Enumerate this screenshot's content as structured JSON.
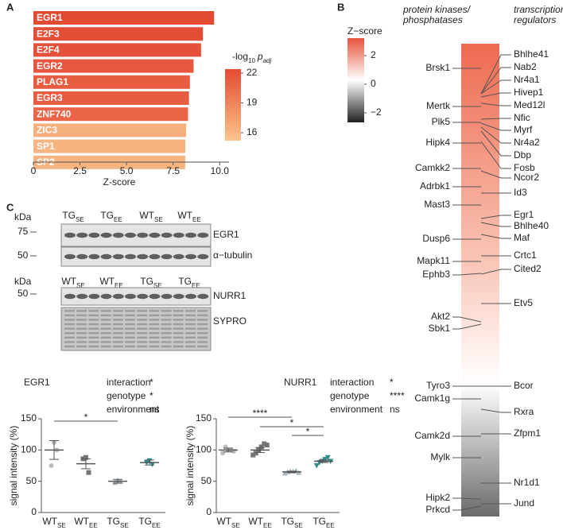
{
  "panels": [
    "A",
    "B",
    "C"
  ],
  "chart_data": [
    {
      "type": "bar",
      "orientation": "horizontal",
      "categories": [
        "EGR1",
        "E2F3",
        "E2F4",
        "EGR2",
        "PLAG1",
        "EGR3",
        "ZNF740",
        "ZIC3",
        "SP1",
        "SP2"
      ],
      "values": [
        9.7,
        9.1,
        9.0,
        8.6,
        8.4,
        8.35,
        8.3,
        8.2,
        8.15,
        8.15
      ],
      "colors": [
        "#e34a33",
        "#e44d35",
        "#e5503a",
        "#e7563e",
        "#e85c42",
        "#e85c42",
        "#ea6447",
        "#f6b07e",
        "#f6b480",
        "#f6b480"
      ],
      "xlabel": "Z-score",
      "xlim": [
        0,
        10.5
      ],
      "xticks": [
        0,
        2.5,
        {
          "value": 5,
          "label": "5.0"
        },
        7.5,
        {
          "value": 10,
          "label": "10.0"
        }
      ],
      "colorbar": {
        "title": [
          "-log",
          "10",
          "p",
          "adj"
        ],
        "lim": [
          15.2,
          22.4
        ],
        "ticks": [
          16,
          19,
          22
        ],
        "colors": [
          "#fbc48e",
          "#e34a33"
        ]
      }
    },
    {
      "type": "gene_strip",
      "left_header": [
        "protein kinases/",
        "phosphatases"
      ],
      "right_header": [
        "transcriptional",
        "regulators"
      ],
      "colorbar": {
        "title": "Z−score",
        "lim": [
          -2.67,
          3.22
        ],
        "ticks": [
          2,
          0,
          {
            "value": -2,
            "label": "−2"
          }
        ]
      },
      "left_labels": [
        "Brsk1",
        "Mertk",
        "Plk5",
        "Hipk4",
        "Camkk2",
        "Adrbk1",
        "Mast3",
        "Dusp6",
        "Mapk11",
        "Ephb3",
        "Akt2",
        "Sbk1",
        "Tyro3",
        "Camk1g",
        "Camk2d",
        "Mylk",
        "Hipk2",
        "Prkcd"
      ],
      "right_labels": [
        "Bhlhe41",
        "Nab2",
        "Nr4a1",
        "Hivep1",
        "Med12l",
        "Nfic",
        "Myrf",
        "Nr4a2",
        "Dbp",
        "Fosb",
        "Ncor2",
        "Id3",
        "Egr1",
        "Bhlhe40",
        "Maf",
        "Crtc1",
        "Cited2",
        "Etv5",
        "Bcor",
        "Rxra",
        "Zfpm1",
        "Nr1d1",
        "Jund"
      ]
    },
    {
      "type": "dot",
      "title": "EGR1",
      "ylabel": "signal intensity (%)",
      "categories": [
        {
          "main": "WT",
          "sub": "SE"
        },
        {
          "main": "WT",
          "sub": "EE"
        },
        {
          "main": "TG",
          "sub": "SE"
        },
        {
          "main": "TG",
          "sub": "EE"
        }
      ],
      "colors": [
        "#bdbdbd",
        "#757575",
        "#a9b9c1",
        "#2a8c8c"
      ],
      "points": [
        [
          75,
          112,
          100
        ],
        [
          86,
          88,
          64
        ],
        [
          48,
          52,
          50
        ],
        [
          80,
          83,
          77
        ]
      ],
      "means": [
        100,
        78,
        50,
        80
      ],
      "sems": [
        15,
        8,
        3,
        4
      ],
      "ylim": [
        0,
        150
      ],
      "yticks": [
        0,
        50,
        100,
        150
      ],
      "stats": [
        {
          "name": "interaction",
          "sig": "*"
        },
        {
          "name": "genotype",
          "sig": "*"
        },
        {
          "name": "environment",
          "sig": "ns"
        }
      ],
      "brackets": [
        {
          "from": 0,
          "to": 2,
          "label": "*"
        }
      ]
    },
    {
      "type": "dot",
      "title": "NURR1",
      "ylabel": "signal intensity (%)",
      "categories": [
        {
          "main": "WT",
          "sub": "SE"
        },
        {
          "main": "WT",
          "sub": "EE"
        },
        {
          "main": "TG",
          "sub": "SE"
        },
        {
          "main": "TG",
          "sub": "EE"
        }
      ],
      "colors": [
        "#bdbdbd",
        "#757575",
        "#a9b9c1",
        "#2a8c8c"
      ],
      "points": [
        [
          95,
          105,
          100,
          100,
          98
        ],
        [
          92,
          95,
          100,
          105,
          110,
          108
        ],
        [
          63,
          65,
          66,
          66,
          67,
          64
        ],
        [
          75,
          80,
          82,
          85,
          88,
          82
        ]
      ],
      "means": [
        100,
        100,
        65,
        82
      ],
      "sems": [
        3,
        4,
        1,
        2
      ],
      "ylim": [
        0,
        150
      ],
      "yticks": [
        0,
        50,
        100,
        150
      ],
      "stats": [
        {
          "name": "interaction",
          "sig": "*"
        },
        {
          "name": "genotype",
          "sig": "****"
        },
        {
          "name": "environment",
          "sig": "ns"
        }
      ],
      "brackets": [
        {
          "from": 0,
          "to": 2,
          "label": "****"
        },
        {
          "from": 1,
          "to": 3,
          "label": "*"
        },
        {
          "from": 2,
          "to": 3,
          "label": "*"
        }
      ]
    }
  ],
  "blots": [
    {
      "unit": "kDa",
      "markers": [
        75,
        50
      ],
      "groups": [
        {
          "main": "TG",
          "sub": "SE"
        },
        {
          "main": "TG",
          "sub": "EE"
        },
        {
          "main": "WT",
          "sub": "SE"
        },
        {
          "main": "WT",
          "sub": "EE"
        }
      ],
      "bands": [
        "EGR1",
        "α−tubulin"
      ]
    },
    {
      "unit": "kDa",
      "markers": [
        50
      ],
      "groups": [
        {
          "main": "WT",
          "sub": "SE"
        },
        {
          "main": "WT",
          "sub": "EE"
        },
        {
          "main": "TG",
          "sub": "SE"
        },
        {
          "main": "TG",
          "sub": "EE"
        }
      ],
      "bands": [
        "NURR1",
        "SYPRO"
      ]
    }
  ]
}
